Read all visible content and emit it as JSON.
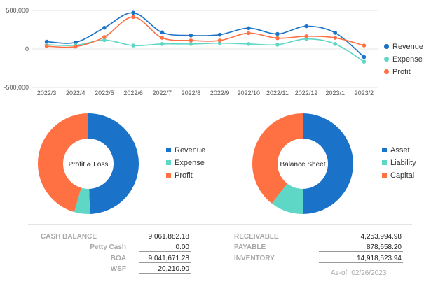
{
  "chart_data": [
    {
      "type": "line",
      "x": [
        "2022/3",
        "2022/4",
        "2022/5",
        "2022/6",
        "2022/7",
        "2022/8",
        "2022/9",
        "2022/10",
        "2022/11",
        "2022/12",
        "2023/1",
        "2023/2"
      ],
      "ylim": [
        -500000,
        500000
      ],
      "yticks": [
        500000,
        0,
        -500000
      ],
      "ytick_labels": [
        "500,000",
        "0",
        "-500,000"
      ],
      "series": [
        {
          "name": "Revenue",
          "color": "#1a73c8",
          "values": [
            95000,
            85000,
            275000,
            470000,
            215000,
            175000,
            185000,
            270000,
            195000,
            295000,
            210000,
            -105000
          ]
        },
        {
          "name": "Expense",
          "color": "#5fd7c6",
          "values": [
            55000,
            48000,
            115000,
            45000,
            65000,
            65000,
            75000,
            65000,
            55000,
            130000,
            65000,
            -165000
          ]
        },
        {
          "name": "Profit",
          "color": "#ff7043",
          "values": [
            35000,
            30000,
            155000,
            415000,
            145000,
            110000,
            110000,
            205000,
            140000,
            165000,
            145000,
            45000
          ]
        }
      ]
    },
    {
      "type": "pie",
      "title": "Profit & Loss",
      "labels": [
        "Revenue",
        "Expense",
        "Profit"
      ],
      "values": [
        49.5,
        5,
        45.5
      ],
      "colors": [
        "#1a73c8",
        "#5fd7c6",
        "#ff7043"
      ]
    },
    {
      "type": "pie",
      "title": "Balance Sheet",
      "labels": [
        "Asset",
        "Liability",
        "Capital"
      ],
      "values": [
        50,
        10.5,
        39.5
      ],
      "colors": [
        "#1a73c8",
        "#5fd7c6",
        "#ff7043"
      ]
    }
  ],
  "legend_line": [
    "Revenue",
    "Expense",
    "Profit"
  ],
  "legend_pl": [
    "Revenue",
    "Expense",
    "Profit"
  ],
  "legend_bs": [
    "Asset",
    "Liability",
    "Capital"
  ],
  "finance_left": {
    "cash_balance_label": "CASH BALANCE",
    "cash_balance_value": "9,061,882.18",
    "rows": [
      {
        "label": "Petty Cash",
        "value": "0.00"
      },
      {
        "label": "BOA",
        "value": "9,041,671.28"
      },
      {
        "label": "WSF",
        "value": "20,210.90"
      }
    ]
  },
  "finance_right": {
    "rows": [
      {
        "label": "RECEIVABLE",
        "value": "4,253,994.98"
      },
      {
        "label": "PAYABLE",
        "value": "878,658.20"
      },
      {
        "label": "INVENTORY",
        "value": "14,918,523.94"
      }
    ]
  },
  "as_of": {
    "label": "As-of",
    "date": "02/26/2023"
  }
}
